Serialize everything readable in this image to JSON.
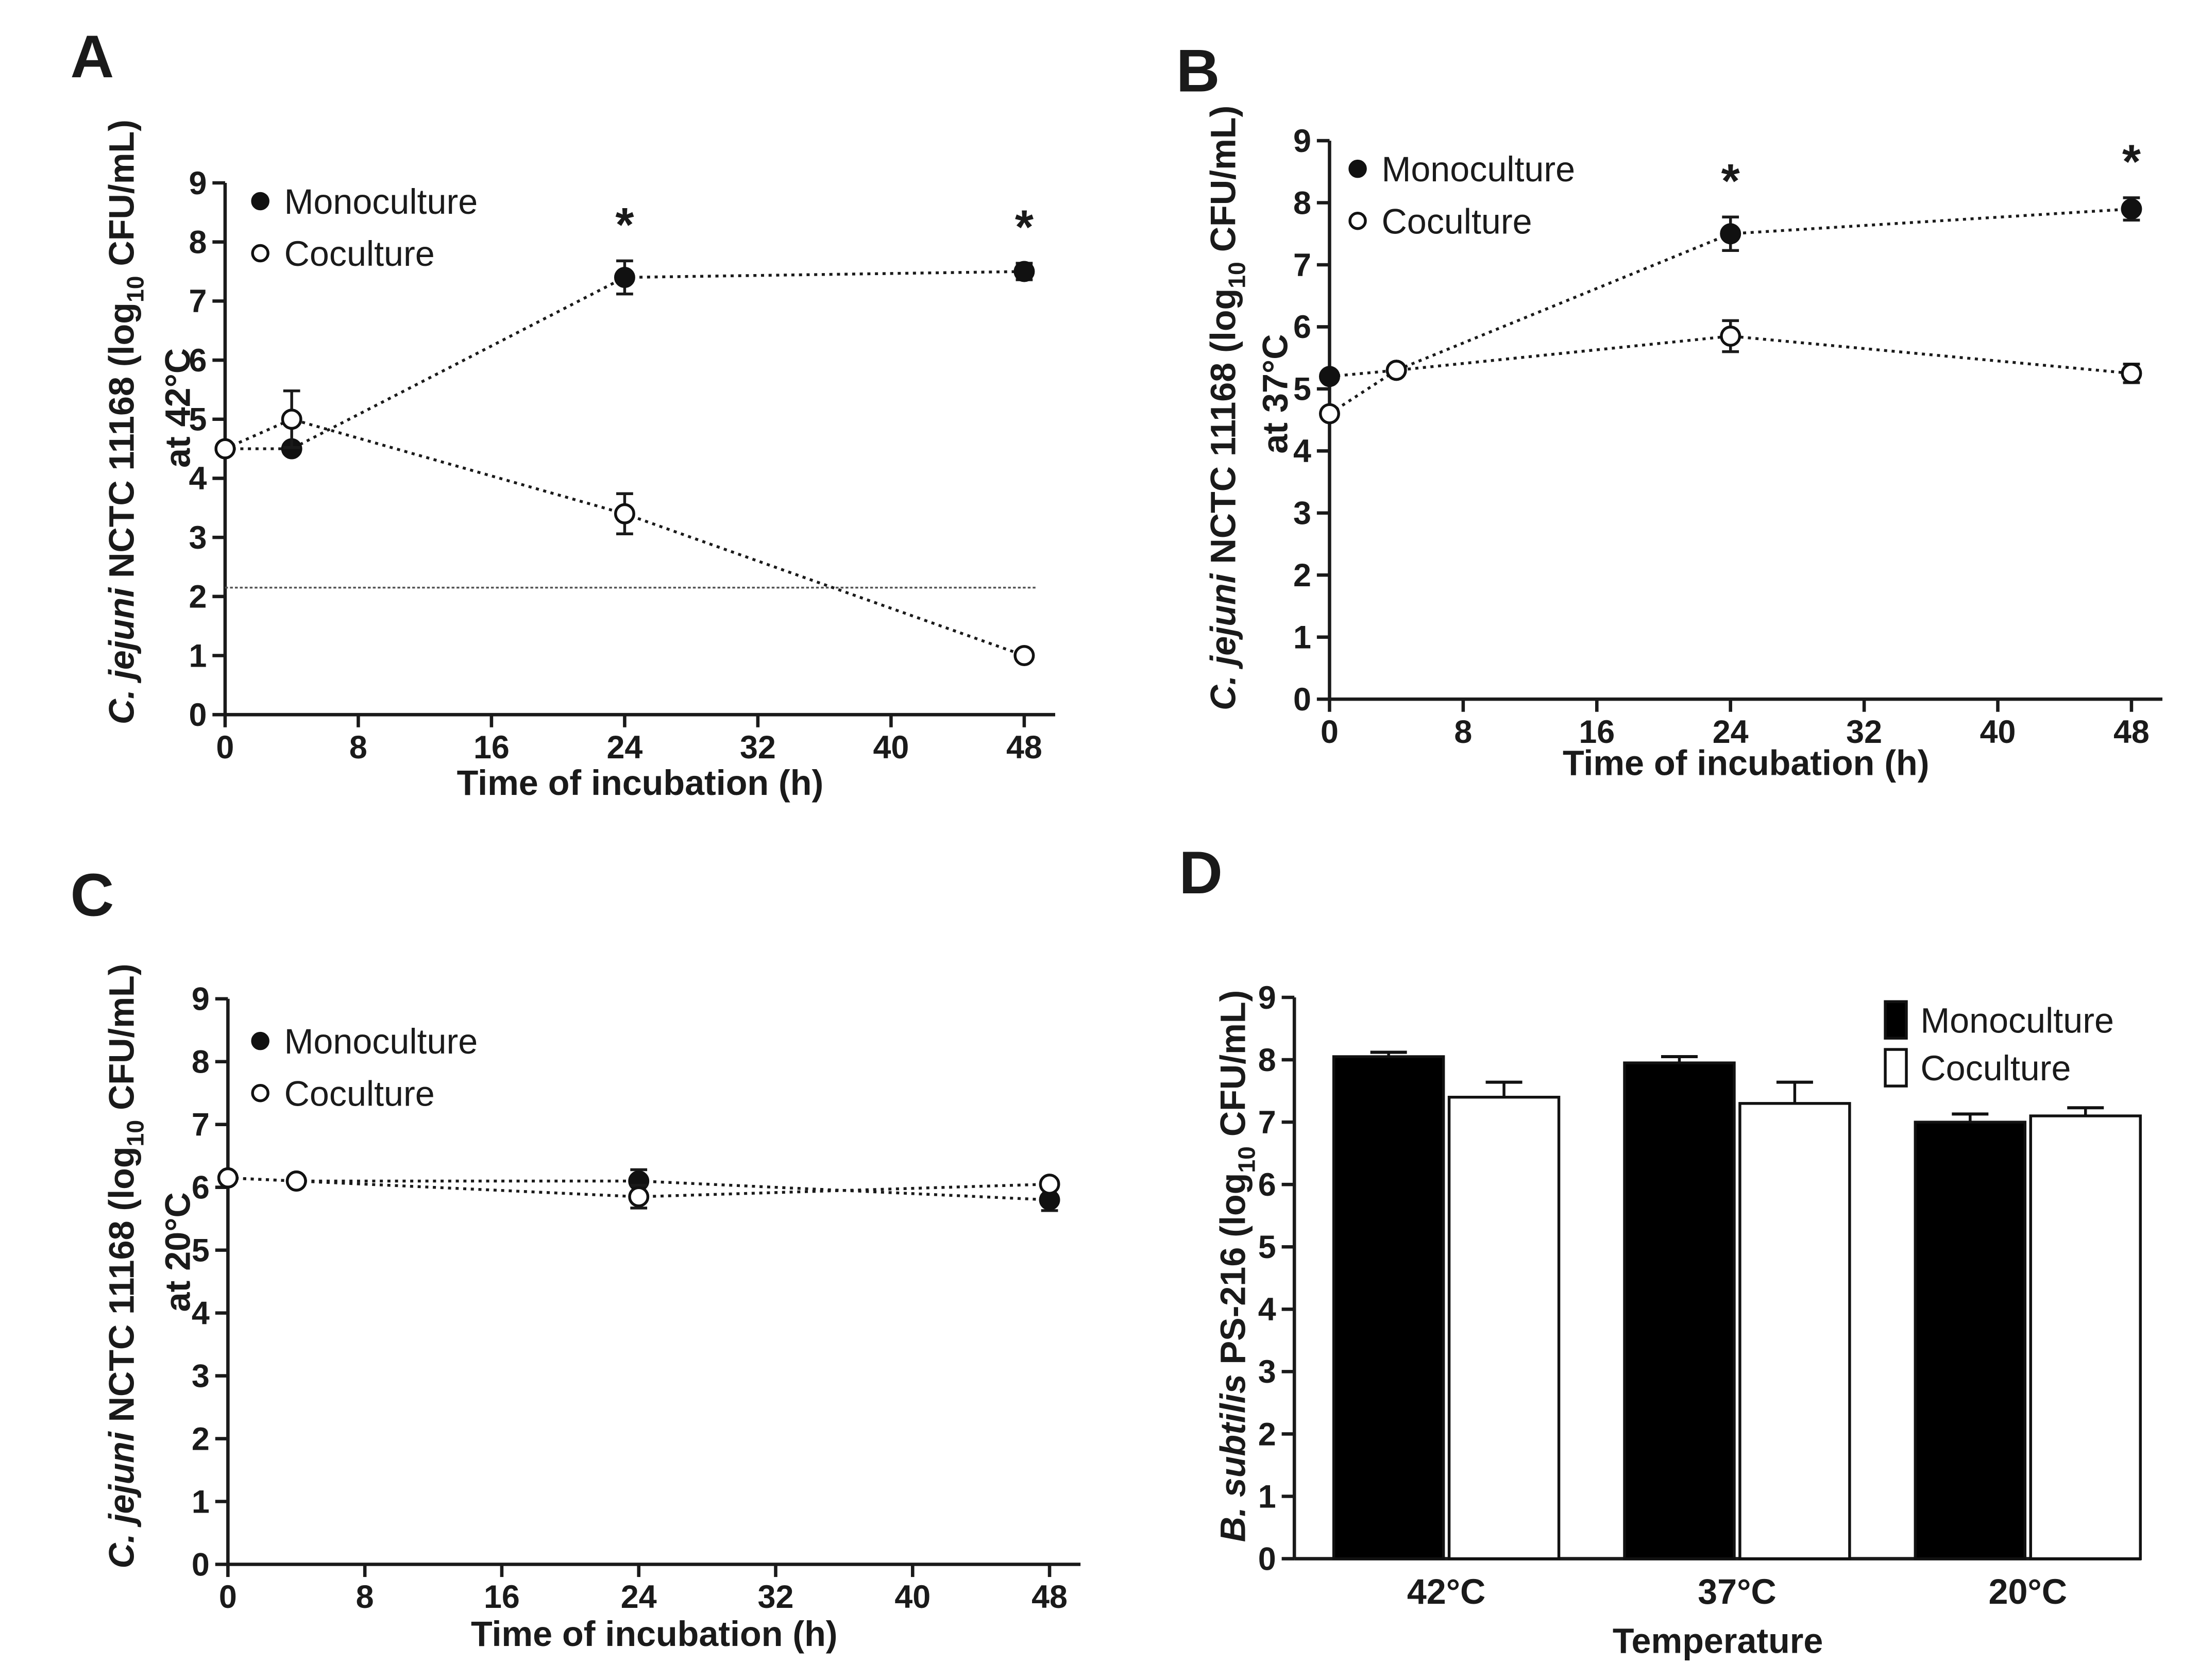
{
  "panels": [
    {
      "letter": "A",
      "type": "line",
      "ylabel": {
        "italic": "C. jejuni",
        "rest": " NCTC 11168  (log",
        "sub": "10",
        "end": " CFU/mL)",
        "line2": "at 42°C"
      },
      "xlabel": "Time of incubation (h)",
      "xticks": [
        "0",
        "8",
        "16",
        "24",
        "32",
        "40",
        "48"
      ],
      "yticks": [
        "0",
        "1",
        "2",
        "3",
        "4",
        "5",
        "6",
        "7",
        "8",
        "9"
      ],
      "legend": [
        "Monoculture",
        "Coculture"
      ],
      "stars": [
        "*",
        "*"
      ]
    },
    {
      "letter": "B",
      "type": "line",
      "ylabel": {
        "italic": "C. jejuni",
        "rest": " NCTC 11168  (log",
        "sub": "10",
        "end": " CFU/mL)",
        "line2": "at 37°C"
      },
      "xlabel": "Time of incubation (h)",
      "xticks": [
        "0",
        "8",
        "16",
        "24",
        "32",
        "40",
        "48"
      ],
      "yticks": [
        "0",
        "1",
        "2",
        "3",
        "4",
        "5",
        "6",
        "7",
        "8",
        "9"
      ],
      "legend": [
        "Monoculture",
        "Coculture"
      ],
      "stars": [
        "*",
        "*"
      ]
    },
    {
      "letter": "C",
      "type": "line",
      "ylabel": {
        "italic": "C. jejuni",
        "rest": " NCTC 11168  (log",
        "sub": "10",
        "end": " CFU/mL)",
        "line2": "at 20°C"
      },
      "xlabel": "Time of incubation (h)",
      "xticks": [
        "0",
        "8",
        "16",
        "24",
        "32",
        "40",
        "48"
      ],
      "yticks": [
        "0",
        "1",
        "2",
        "3",
        "4",
        "5",
        "6",
        "7",
        "8",
        "9"
      ],
      "legend": [
        "Monoculture",
        "Coculture"
      ],
      "stars": []
    },
    {
      "letter": "D",
      "type": "bar",
      "ylabel": {
        "italic": "B. subtilis",
        "rest": " PS-216 (log",
        "sub": "10",
        "end": " CFU/mL)",
        "line2": ""
      },
      "xlabel": "Temperature",
      "xticks": [
        "42°C",
        "37°C",
        "20°C"
      ],
      "yticks": [
        "0",
        "1",
        "2",
        "3",
        "4",
        "5",
        "6",
        "7",
        "8",
        "9"
      ],
      "legend": [
        "Monoculture",
        "Coculture"
      ],
      "stars": []
    }
  ],
  "chart_data": [
    {
      "type": "line",
      "panel": "A",
      "xlabel": "Time of incubation (h)",
      "ylabel": "C. jejuni NCTC 11168 (log10 CFU/mL) at 42°C",
      "xlim": [
        0,
        48
      ],
      "ylim": [
        0,
        9
      ],
      "x": [
        0,
        4,
        24,
        48
      ],
      "series": [
        {
          "name": "Monoculture",
          "filled": true,
          "values": [
            4.5,
            4.5,
            7.4,
            7.5
          ],
          "err": [
            0,
            0,
            0.28,
            0.14
          ]
        },
        {
          "name": "Coculture",
          "filled": false,
          "values": [
            4.5,
            5.0,
            3.4,
            1.0
          ],
          "err": [
            0,
            0.48,
            0.34,
            0
          ]
        }
      ],
      "reference_line": 2.15,
      "significant_x": [
        24,
        48
      ],
      "legend_position": "top-left"
    },
    {
      "type": "line",
      "panel": "B",
      "xlabel": "Time of incubation (h)",
      "ylabel": "C. jejuni NCTC 11168 (log10 CFU/mL) at 37°C",
      "xlim": [
        0,
        48
      ],
      "ylim": [
        0,
        9
      ],
      "x": [
        0,
        4,
        24,
        48
      ],
      "series": [
        {
          "name": "Monoculture",
          "filled": true,
          "values": [
            5.2,
            5.3,
            7.5,
            7.9
          ],
          "err": [
            0,
            0,
            0.27,
            0.18
          ]
        },
        {
          "name": "Coculture",
          "filled": false,
          "values": [
            4.6,
            5.3,
            5.85,
            5.25
          ],
          "err": [
            0,
            0,
            0.25,
            0.15
          ]
        }
      ],
      "significant_x": [
        24,
        48
      ],
      "legend_position": "top-left"
    },
    {
      "type": "line",
      "panel": "C",
      "xlabel": "Time of incubation (h)",
      "ylabel": "C. jejuni NCTC 11168 (log10 CFU/mL) at 20°C",
      "xlim": [
        0,
        48
      ],
      "ylim": [
        0,
        9
      ],
      "x": [
        0,
        4,
        24,
        48
      ],
      "series": [
        {
          "name": "Monoculture",
          "filled": true,
          "values": [
            6.15,
            6.1,
            6.1,
            5.8
          ],
          "err": [
            0,
            0,
            0.18,
            0.17
          ]
        },
        {
          "name": "Coculture",
          "filled": false,
          "values": [
            6.15,
            6.1,
            5.85,
            6.05
          ],
          "err": [
            0,
            0,
            0.18,
            0
          ]
        }
      ],
      "legend_position": "top-left"
    },
    {
      "type": "bar",
      "panel": "D",
      "xlabel": "Temperature",
      "ylabel": "B. subtilis PS-216 (log10 CFU/mL)",
      "ylim": [
        0,
        9
      ],
      "categories": [
        "42°C",
        "37°C",
        "20°C"
      ],
      "series": [
        {
          "name": "Monoculture",
          "color": "#000000",
          "values": [
            8.05,
            7.95,
            7.0
          ],
          "err": [
            0.07,
            0.1,
            0.13
          ]
        },
        {
          "name": "Coculture",
          "color": "#ffffff",
          "values": [
            7.4,
            7.3,
            7.1
          ],
          "err": [
            0.24,
            0.34,
            0.13
          ]
        }
      ],
      "legend_position": "top-right"
    }
  ]
}
